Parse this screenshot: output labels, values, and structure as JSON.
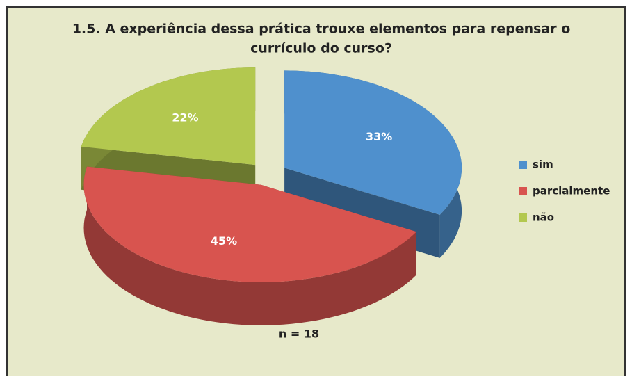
{
  "chart_data": {
    "type": "pie3d",
    "title": [
      "1.5. A experiência dessa prática trouxe elementos para repensar o",
      "currículo do curso?"
    ],
    "categories": [
      "sim",
      "parcialmente",
      "não"
    ],
    "values": [
      33,
      45,
      22
    ],
    "value_labels": [
      "33%",
      "45%",
      "22%"
    ],
    "colors": [
      "#4f90cd",
      "#d8544f",
      "#b3c84f"
    ],
    "annotation": "n = 18",
    "legend": "right"
  }
}
